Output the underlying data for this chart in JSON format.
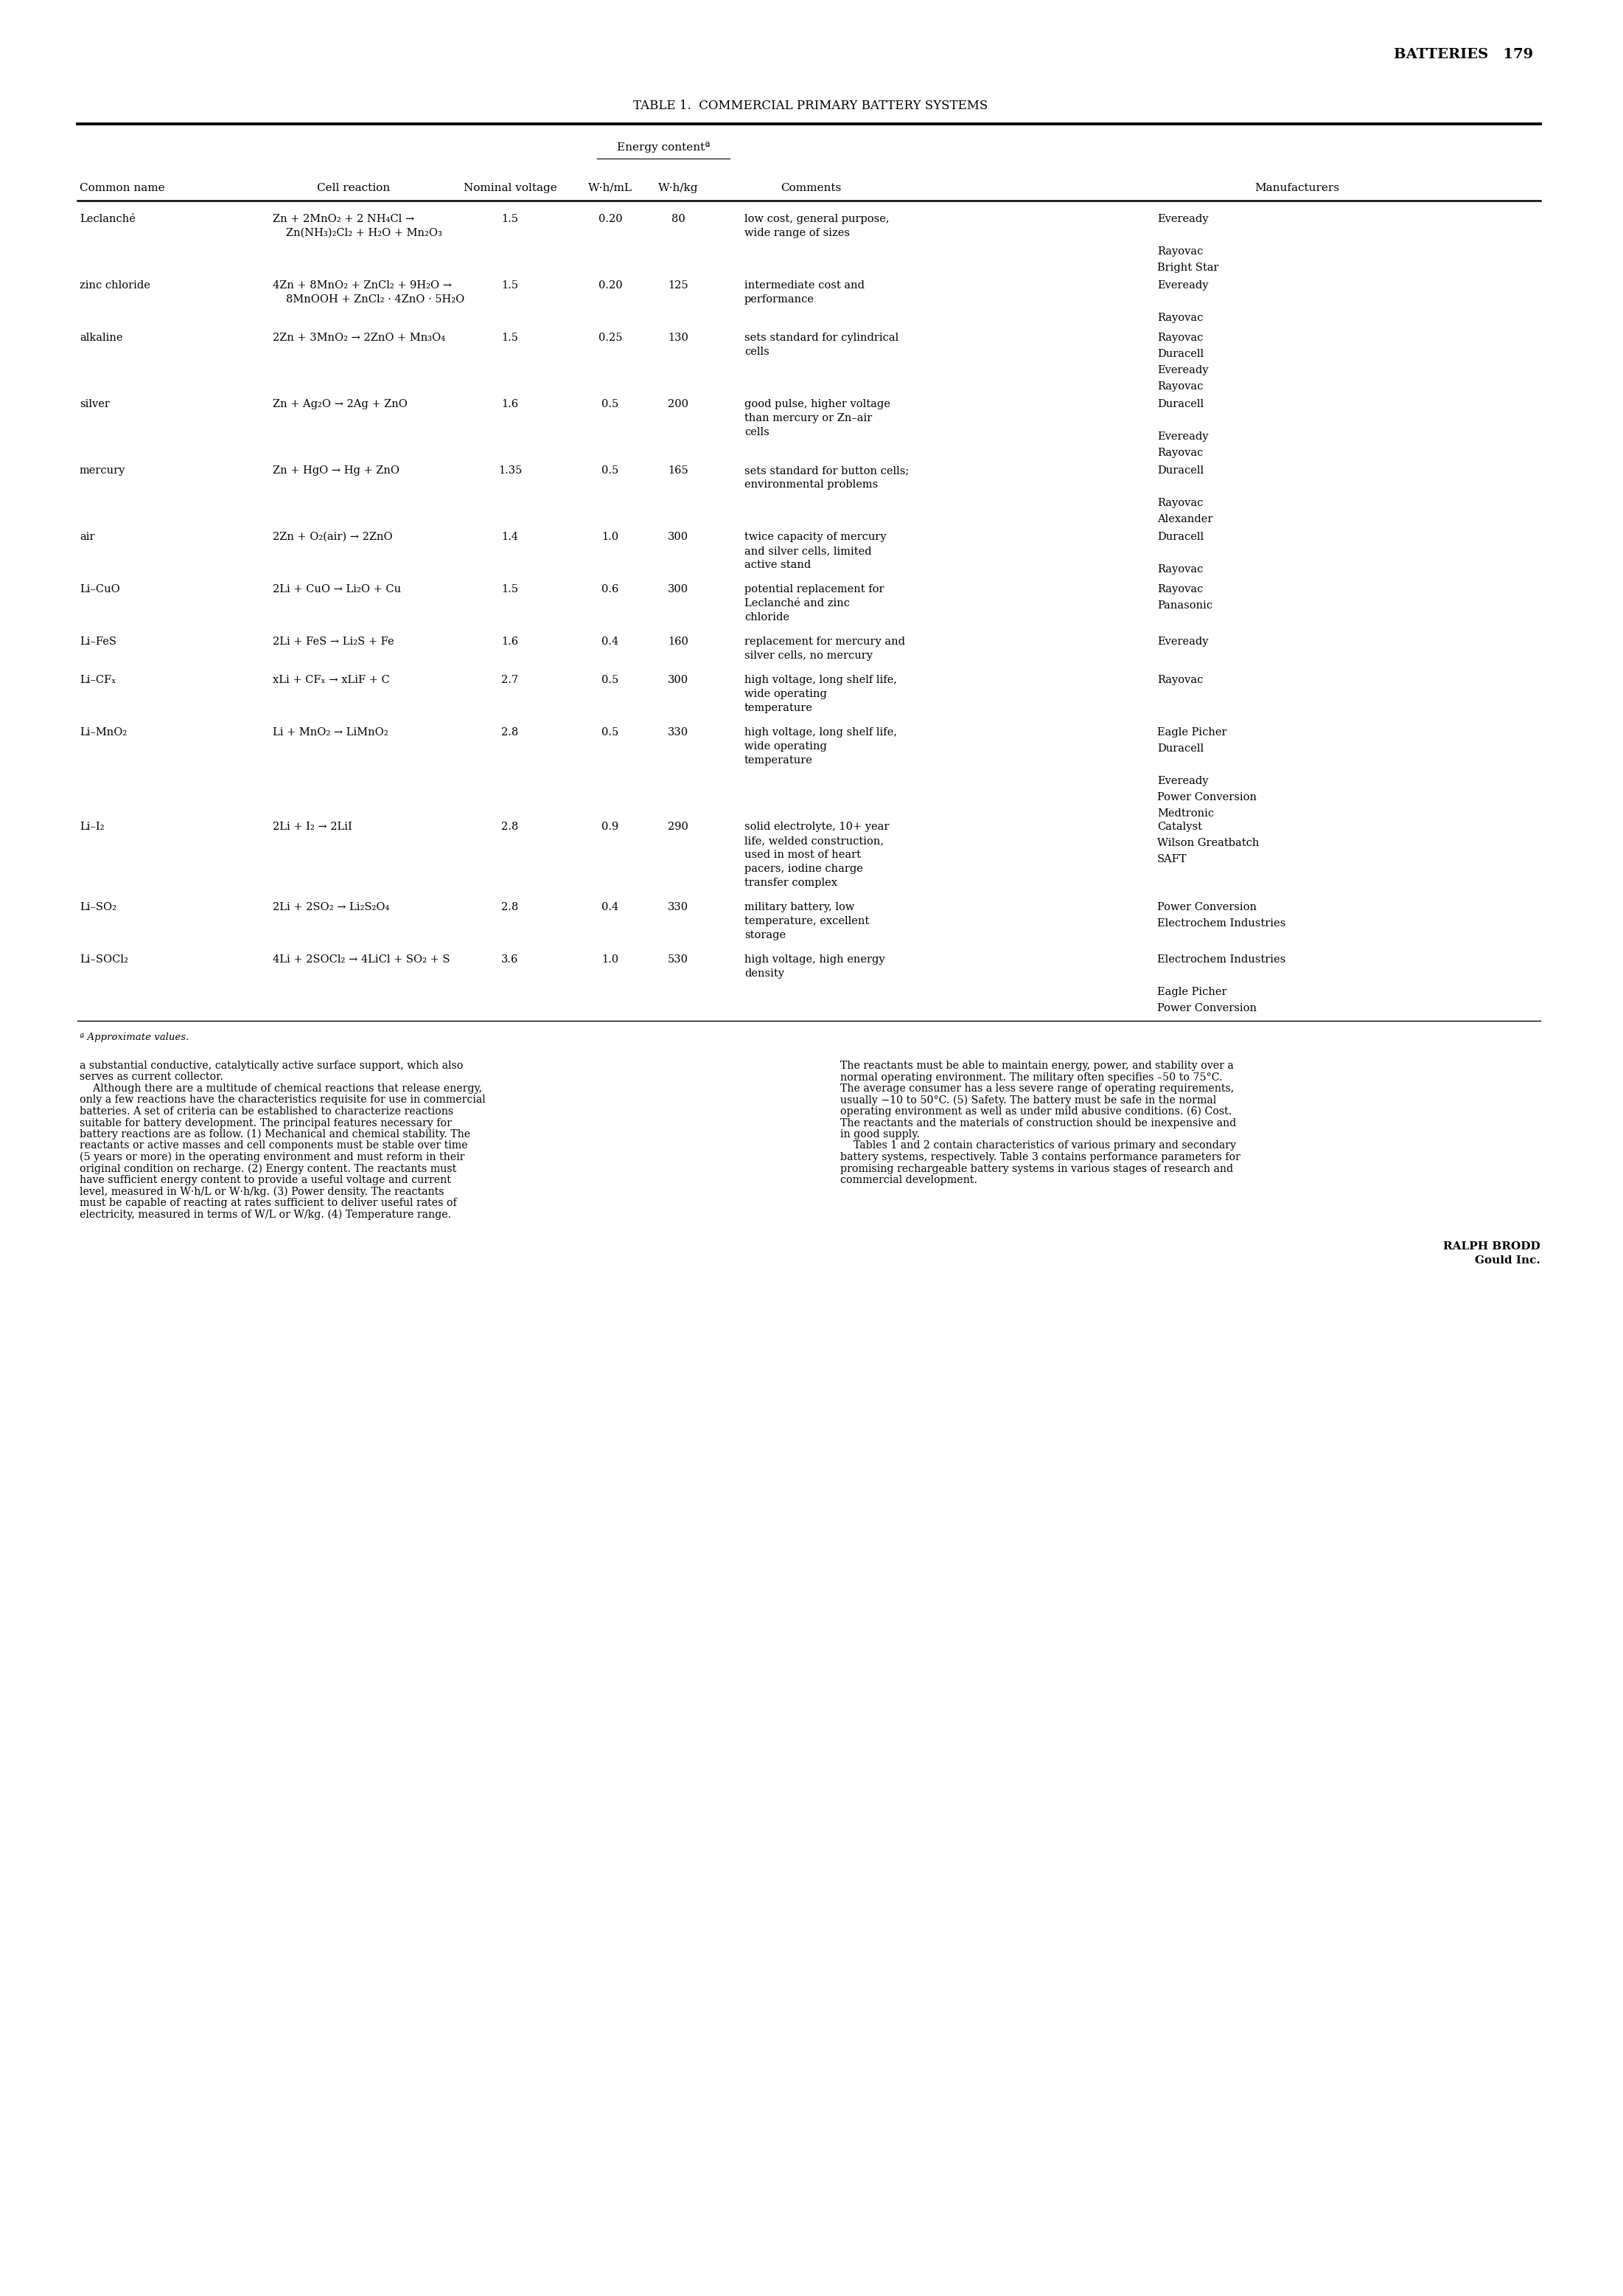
{
  "page_header": "BATTERIES   179",
  "table_title": "TABLE 1.  COMMERCIAL PRIMARY BATTERY SYSTEMS",
  "col_headers": [
    "Common name",
    "Cell reaction",
    "Nominal voltage",
    "W·h/mL",
    "W·h/kg",
    "Comments",
    "Manufacturers"
  ],
  "energy_header": "Energy contentª",
  "footnote": "ª Approximate values.",
  "rows": [
    {
      "name": "Leclanché",
      "reaction_line1": "Zn + 2MnO₂ + 2 NH₄Cl →",
      "reaction_line2": "Zn(NH₃)₂Cl₂ + H₂O + Mn₂O₃",
      "voltage": "1.5",
      "wh_ml": "0.20",
      "wh_kg": "80",
      "comments": [
        "low cost, general purpose,",
        "wide range of sizes"
      ],
      "manufacturers": [
        "Eveready",
        "",
        "Rayovac",
        "Bright Star"
      ]
    },
    {
      "name": "zinc chloride",
      "reaction_line1": "4Zn + 8MnO₂ + ZnCl₂ + 9H₂O →",
      "reaction_line2": "8MnOOH + ZnCl₂ · 4ZnO · 5H₂O",
      "voltage": "1.5",
      "wh_ml": "0.20",
      "wh_kg": "125",
      "comments": [
        "intermediate cost and",
        "performance"
      ],
      "manufacturers": [
        "Eveready",
        "",
        "Rayovac"
      ]
    },
    {
      "name": "alkaline",
      "reaction_line1": "2Zn + 3MnO₂ → 2ZnO + Mn₃O₄",
      "reaction_line2": "",
      "voltage": "1.5",
      "wh_ml": "0.25",
      "wh_kg": "130",
      "comments": [
        "sets standard for cylindrical",
        "cells"
      ],
      "manufacturers": [
        "Rayovac",
        "Duracell",
        "Eveready",
        "Rayovac"
      ]
    },
    {
      "name": "silver",
      "reaction_line1": "Zn + Ag₂O → 2Ag + ZnO",
      "reaction_line2": "",
      "voltage": "1.6",
      "wh_ml": "0.5",
      "wh_kg": "200",
      "comments": [
        "good pulse, higher voltage",
        "than mercury or Zn–air",
        "cells"
      ],
      "manufacturers": [
        "Duracell",
        "",
        "Eveready",
        "Rayovac"
      ]
    },
    {
      "name": "mercury",
      "reaction_line1": "Zn + HgO → Hg + ZnO",
      "reaction_line2": "",
      "voltage": "1.35",
      "wh_ml": "0.5",
      "wh_kg": "165",
      "comments": [
        "sets standard for button cells;",
        "environmental problems"
      ],
      "manufacturers": [
        "Duracell",
        "",
        "Rayovac",
        "Alexander"
      ]
    },
    {
      "name": "air",
      "reaction_line1": "2Zn + O₂(air) → 2ZnO",
      "reaction_line2": "",
      "voltage": "1.4",
      "wh_ml": "1.0",
      "wh_kg": "300",
      "comments": [
        "twice capacity of mercury",
        "and silver cells, limited",
        "active stand"
      ],
      "manufacturers": [
        "Duracell",
        "",
        "Rayovac"
      ]
    },
    {
      "name": "Li–CuO",
      "reaction_line1": "2Li + CuO → Li₂O + Cu",
      "reaction_line2": "",
      "voltage": "1.5",
      "wh_ml": "0.6",
      "wh_kg": "300",
      "comments": [
        "potential replacement for",
        "Leclanché and zinc",
        "chloride"
      ],
      "manufacturers": [
        "Rayovac",
        "Panasonic"
      ]
    },
    {
      "name": "Li–FeS",
      "reaction_line1": "2Li + FeS → Li₂S + Fe",
      "reaction_line2": "",
      "voltage": "1.6",
      "wh_ml": "0.4",
      "wh_kg": "160",
      "comments": [
        "replacement for mercury and",
        "silver cells, no mercury"
      ],
      "manufacturers": [
        "Eveready"
      ]
    },
    {
      "name": "Li–CFₓ",
      "reaction_line1": "xLi + CFₓ → xLiF + C",
      "reaction_line2": "",
      "voltage": "2.7",
      "wh_ml": "0.5",
      "wh_kg": "300",
      "comments": [
        "high voltage, long shelf life,",
        "wide operating",
        "temperature"
      ],
      "manufacturers": [
        "Rayovac"
      ]
    },
    {
      "name": "Li–MnO₂",
      "reaction_line1": "Li + MnO₂ → LiMnO₂",
      "reaction_line2": "",
      "voltage": "2.8",
      "wh_ml": "0.5",
      "wh_kg": "330",
      "comments": [
        "high voltage, long shelf life,",
        "wide operating",
        "temperature"
      ],
      "manufacturers": [
        "Eagle Picher",
        "Duracell",
        "",
        "Eveready",
        "Power Conversion",
        "Medtronic"
      ]
    },
    {
      "name": "Li–I₂",
      "reaction_line1": "2Li + I₂ → 2LiI",
      "reaction_line2": "",
      "voltage": "2.8",
      "wh_ml": "0.9",
      "wh_kg": "290",
      "comments": [
        "solid electrolyte, 10+ year",
        "life, welded construction,",
        "used in most of heart",
        "pacers, iodine charge",
        "transfer complex"
      ],
      "manufacturers": [
        "Catalyst",
        "Wilson Greatbatch",
        "SAFT"
      ]
    },
    {
      "name": "Li–SO₂",
      "reaction_line1": "2Li + 2SO₂ → Li₂S₂O₄",
      "reaction_line2": "",
      "voltage": "2.8",
      "wh_ml": "0.4",
      "wh_kg": "330",
      "comments": [
        "military battery, low",
        "temperature, excellent",
        "storage"
      ],
      "manufacturers": [
        "Power Conversion",
        "Electrochem Industries"
      ]
    },
    {
      "name": "Li–SOCl₂",
      "reaction_line1": "4Li + 2SOCl₂ → 4LiCl + SO₂ + S",
      "reaction_line2": "",
      "voltage": "3.6",
      "wh_ml": "1.0",
      "wh_kg": "530",
      "comments": [
        "high voltage, high energy",
        "density"
      ],
      "manufacturers": [
        "Electrochem Industries",
        "",
        "Eagle Picher",
        "Power Conversion"
      ]
    }
  ],
  "body_text_left": [
    "a substantial conductive, catalytically active surface support, which also",
    "serves as current collector.",
    "    Although there are a multitude of chemical reactions that release energy,",
    "only a few reactions have the characteristics requisite for use in commercial",
    "batteries. A set of criteria can be established to characterize reactions",
    "suitable for battery development. The principal features necessary for",
    "battery reactions are as follow. (1) Mechanical and chemical stability. The",
    "reactants or active masses and cell components must be stable over time",
    "(5 years or more) in the operating environment and must reform in their",
    "original condition on recharge. (2) Energy content. The reactants must",
    "have sufficient energy content to provide a useful voltage and current",
    "level, measured in W·h/L or W·h/kg. (3) Power density. The reactants",
    "must be capable of reacting at rates sufficient to deliver useful rates of",
    "electricity, measured in terms of W/L or W/kg. (4) Temperature range."
  ],
  "body_text_right": [
    "The reactants must be able to maintain energy, power, and stability over a",
    "normal operating environment. The military often specifies –50 to 75°C.",
    "The average consumer has a less severe range of operating requirements,",
    "usually −10 to 50°C. (5) Safety. The battery must be safe in the normal",
    "operating environment as well as under mild abusive conditions. (6) Cost.",
    "The reactants and the materials of construction should be inexpensive and",
    "in good supply.",
    "    Tables 1 and 2 contain characteristics of various primary and secondary",
    "battery systems, respectively. Table 3 contains performance parameters for",
    "promising rechargeable battery systems in various stages of research and",
    "commercial development."
  ],
  "signature": [
    "RALPH BRODD",
    "Gould Inc."
  ]
}
